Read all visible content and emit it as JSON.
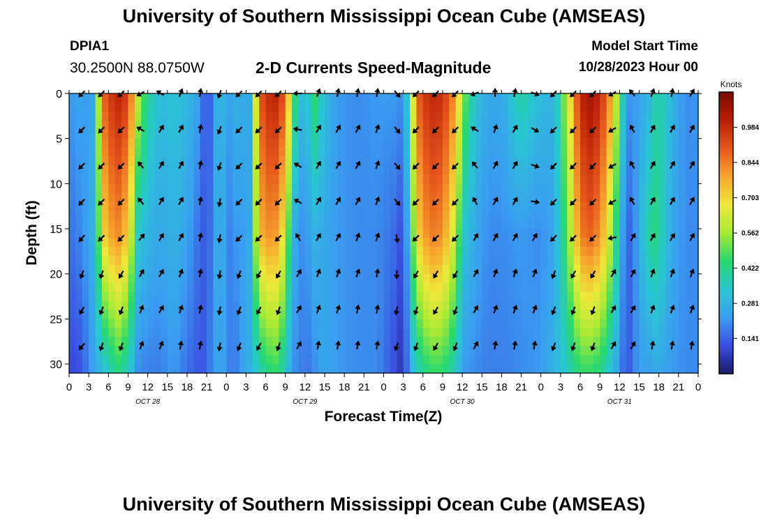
{
  "header": {
    "title": "University of Southern Mississippi Ocean Cube (AMSEAS)",
    "station_id": "DPIA1",
    "station_coords": "30.2500N  88.0750W",
    "subtitle": "2-D Currents Speed-Magnitude",
    "model_start_label": "Model Start Time",
    "model_start_value": "10/28/2023 Hour 00"
  },
  "footer": {
    "title": "University of Southern Mississippi Ocean Cube (AMSEAS)"
  },
  "chart_data": {
    "type": "heatmap",
    "title": "2-D Currents Speed-Magnitude",
    "xlabel": "Forecast Time(Z)",
    "ylabel": "Depth (ft)",
    "x_unit": "hours since 10/28/2023 00Z",
    "xlim": [
      0,
      96
    ],
    "ylim": [
      31,
      0
    ],
    "x_ticks": [
      0,
      3,
      6,
      9,
      12,
      15,
      18,
      21,
      24,
      27,
      30,
      33,
      36,
      39,
      42,
      45,
      48,
      51,
      54,
      57,
      60,
      63,
      66,
      69,
      72,
      75,
      78,
      81,
      84,
      87,
      90,
      93,
      96
    ],
    "x_tick_labels": [
      "0",
      "3",
      "6",
      "9",
      "12",
      "15",
      "18",
      "21",
      "0",
      "3",
      "6",
      "9",
      "12",
      "15",
      "18",
      "21",
      "0",
      "3",
      "6",
      "9",
      "12",
      "15",
      "18",
      "21",
      "0",
      "3",
      "6",
      "9",
      "12",
      "15",
      "18",
      "21",
      "0"
    ],
    "date_labels": [
      {
        "hour": 12,
        "label": "OCT 28"
      },
      {
        "hour": 36,
        "label": "OCT 29"
      },
      {
        "hour": 60,
        "label": "OCT 30"
      },
      {
        "hour": 84,
        "label": "OCT 31"
      }
    ],
    "y_ticks": [
      0,
      5,
      10,
      15,
      20,
      25,
      30
    ],
    "y_tick_labels": [
      "0",
      "5",
      "10",
      "15",
      "20",
      "25",
      "30"
    ],
    "colorbar": {
      "label": "Knots",
      "min": 0,
      "max": 1.125,
      "tick_values": [
        0.141,
        0.281,
        0.422,
        0.562,
        0.703,
        0.844,
        0.984
      ],
      "tick_labels": [
        "0.141",
        "0.281",
        "0.422",
        "0.562",
        "0.703",
        "0.844",
        "0.984"
      ],
      "colors": [
        "#1a1a66",
        "#3a4de0",
        "#3a9ff0",
        "#29c7d1",
        "#28d96f",
        "#a6ea35",
        "#eee93a",
        "#f7a52d",
        "#e5571c",
        "#b81f05",
        "#7a0b00"
      ]
    },
    "speed_field": {
      "description": "Current speed (knots) sampled at selected hours; each row lists [hour, speed_at_surface, speed_at_mid(≈15ft), speed_at_bottom(≈30ft)]",
      "hours_samples": [
        [
          0,
          0.22,
          0.16,
          0.1
        ],
        [
          2,
          0.25,
          0.2,
          0.12
        ],
        [
          3,
          0.2,
          0.25,
          0.2
        ],
        [
          4,
          0.3,
          0.3,
          0.25
        ],
        [
          5,
          0.85,
          0.68,
          0.3
        ],
        [
          6,
          0.95,
          0.78,
          0.35
        ],
        [
          7.5,
          1.0,
          0.82,
          0.42
        ],
        [
          9,
          0.95,
          0.72,
          0.35
        ],
        [
          10.5,
          0.6,
          0.35,
          0.2
        ],
        [
          12,
          0.4,
          0.28,
          0.18
        ],
        [
          14,
          0.3,
          0.25,
          0.18
        ],
        [
          16,
          0.33,
          0.28,
          0.22
        ],
        [
          18,
          0.3,
          0.24,
          0.16
        ],
        [
          20,
          0.22,
          0.15,
          0.12
        ],
        [
          21,
          0.08,
          0.12,
          0.14
        ],
        [
          22,
          0.2,
          0.2,
          0.22
        ],
        [
          23,
          0.35,
          0.3,
          0.25
        ],
        [
          24,
          0.22,
          0.2,
          0.22
        ],
        [
          25,
          0.25,
          0.18,
          0.15
        ],
        [
          26,
          0.3,
          0.25,
          0.22
        ],
        [
          27,
          0.22,
          0.2,
          0.25
        ],
        [
          28,
          0.3,
          0.32,
          0.3
        ],
        [
          28.8,
          0.85,
          0.72,
          0.35
        ],
        [
          30,
          0.98,
          0.82,
          0.42
        ],
        [
          31.5,
          1.0,
          0.8,
          0.45
        ],
        [
          33,
          0.9,
          0.65,
          0.35
        ],
        [
          34,
          0.55,
          0.3,
          0.2
        ],
        [
          35,
          0.32,
          0.22,
          0.2
        ],
        [
          36,
          0.3,
          0.2,
          0.16
        ],
        [
          37.5,
          0.45,
          0.28,
          0.2
        ],
        [
          39,
          0.3,
          0.25,
          0.25
        ],
        [
          41,
          0.22,
          0.22,
          0.22
        ],
        [
          44,
          0.2,
          0.2,
          0.2
        ],
        [
          47,
          0.22,
          0.2,
          0.2
        ],
        [
          50,
          0.22,
          0.15,
          0.1
        ],
        [
          51,
          0.2,
          0.1,
          0.05
        ],
        [
          52,
          0.45,
          0.35,
          0.25
        ],
        [
          53,
          0.88,
          0.7,
          0.35
        ],
        [
          55,
          1.0,
          0.85,
          0.45
        ],
        [
          57,
          0.98,
          0.82,
          0.45
        ],
        [
          59,
          0.8,
          0.6,
          0.35
        ],
        [
          60,
          0.55,
          0.35,
          0.22
        ],
        [
          62,
          0.32,
          0.25,
          0.2
        ],
        [
          64,
          0.25,
          0.2,
          0.18
        ],
        [
          66,
          0.25,
          0.2,
          0.18
        ],
        [
          69,
          0.4,
          0.22,
          0.2
        ],
        [
          72,
          0.3,
          0.2,
          0.22
        ],
        [
          74,
          0.28,
          0.25,
          0.28
        ],
        [
          76,
          0.6,
          0.5,
          0.35
        ],
        [
          78,
          1.0,
          0.85,
          0.45
        ],
        [
          79.5,
          1.05,
          0.88,
          0.45
        ],
        [
          81,
          1.0,
          0.82,
          0.42
        ],
        [
          83,
          0.75,
          0.55,
          0.3
        ],
        [
          84,
          0.45,
          0.3,
          0.2
        ],
        [
          85,
          0.28,
          0.15,
          0.12
        ],
        [
          86,
          0.15,
          0.15,
          0.15
        ],
        [
          87,
          0.3,
          0.28,
          0.25
        ],
        [
          88,
          0.22,
          0.35,
          0.2
        ],
        [
          89,
          0.35,
          0.45,
          0.25
        ],
        [
          90,
          0.4,
          0.4,
          0.25
        ],
        [
          92,
          0.28,
          0.25,
          0.22
        ],
        [
          94,
          0.2,
          0.2,
          0.2
        ],
        [
          96,
          0.22,
          0.2,
          0.2
        ]
      ]
    },
    "vectors": {
      "depths": [
        0,
        4,
        8,
        12,
        16,
        20,
        24,
        28
      ],
      "samples": [
        {
          "hour": 2,
          "dir": [
            225,
            225,
            225,
            225,
            220,
            200,
            210,
            220
          ]
        },
        {
          "hour": 5,
          "dir": [
            225,
            225,
            225,
            225,
            225,
            200,
            200,
            200
          ]
        },
        {
          "hour": 8,
          "dir": [
            225,
            225,
            225,
            225,
            225,
            210,
            200,
            200
          ]
        },
        {
          "hour": 11,
          "dir": [
            240,
            300,
            320,
            320,
            40,
            30,
            20,
            20
          ]
        },
        {
          "hour": 14,
          "dir": [
            300,
            30,
            30,
            30,
            30,
            30,
            30,
            20
          ]
        },
        {
          "hour": 17,
          "dir": [
            20,
            30,
            30,
            30,
            30,
            20,
            20,
            10
          ]
        },
        {
          "hour": 20,
          "dir": [
            10,
            10,
            10,
            10,
            10,
            10,
            10,
            10
          ]
        },
        {
          "hour": 23,
          "dir": [
            200,
            200,
            200,
            190,
            190,
            190,
            190,
            190
          ]
        },
        {
          "hour": 26,
          "dir": [
            225,
            225,
            225,
            225,
            225,
            200,
            200,
            200
          ]
        },
        {
          "hour": 29,
          "dir": [
            225,
            225,
            225,
            225,
            225,
            210,
            210,
            210
          ]
        },
        {
          "hour": 32,
          "dir": [
            225,
            225,
            225,
            225,
            225,
            210,
            200,
            200
          ]
        },
        {
          "hour": 35,
          "dir": [
            270,
            280,
            300,
            300,
            330,
            30,
            30,
            30
          ]
        },
        {
          "hour": 38,
          "dir": [
            20,
            30,
            30,
            30,
            30,
            20,
            20,
            10
          ]
        },
        {
          "hour": 41,
          "dir": [
            10,
            30,
            30,
            30,
            30,
            20,
            20,
            10
          ]
        },
        {
          "hour": 44,
          "dir": [
            10,
            30,
            30,
            30,
            20,
            20,
            10,
            10
          ]
        },
        {
          "hour": 47,
          "dir": [
            10,
            20,
            20,
            20,
            20,
            10,
            10,
            10
          ]
        },
        {
          "hour": 50,
          "dir": [
            140,
            140,
            140,
            140,
            170,
            180,
            190,
            200
          ]
        },
        {
          "hour": 53,
          "dir": [
            225,
            225,
            225,
            225,
            225,
            210,
            200,
            200
          ]
        },
        {
          "hour": 56,
          "dir": [
            225,
            225,
            225,
            225,
            225,
            210,
            210,
            210
          ]
        },
        {
          "hour": 59,
          "dir": [
            225,
            225,
            225,
            225,
            225,
            210,
            200,
            200
          ]
        },
        {
          "hour": 62,
          "dir": [
            250,
            300,
            320,
            330,
            30,
            30,
            30,
            30
          ]
        },
        {
          "hour": 65,
          "dir": [
            0,
            20,
            30,
            30,
            30,
            20,
            20,
            10
          ]
        },
        {
          "hour": 68,
          "dir": [
            10,
            30,
            30,
            30,
            30,
            20,
            20,
            10
          ]
        },
        {
          "hour": 71,
          "dir": [
            110,
            120,
            110,
            100,
            30,
            20,
            20,
            10
          ]
        },
        {
          "hour": 74,
          "dir": [
            225,
            225,
            225,
            225,
            225,
            200,
            200,
            200
          ]
        },
        {
          "hour": 77,
          "dir": [
            225,
            225,
            225,
            225,
            225,
            210,
            200,
            200
          ]
        },
        {
          "hour": 80,
          "dir": [
            225,
            225,
            225,
            225,
            225,
            210,
            200,
            200
          ]
        },
        {
          "hour": 83,
          "dir": [
            240,
            240,
            240,
            240,
            260,
            30,
            30,
            30
          ]
        },
        {
          "hour": 86,
          "dir": [
            320,
            330,
            330,
            330,
            30,
            30,
            30,
            30
          ]
        },
        {
          "hour": 89,
          "dir": [
            20,
            30,
            30,
            30,
            30,
            20,
            20,
            10
          ]
        },
        {
          "hour": 92,
          "dir": [
            10,
            30,
            30,
            30,
            30,
            20,
            20,
            10
          ]
        },
        {
          "hour": 95,
          "dir": [
            30,
            30,
            30,
            30,
            30,
            20,
            20,
            10
          ]
        }
      ]
    }
  }
}
